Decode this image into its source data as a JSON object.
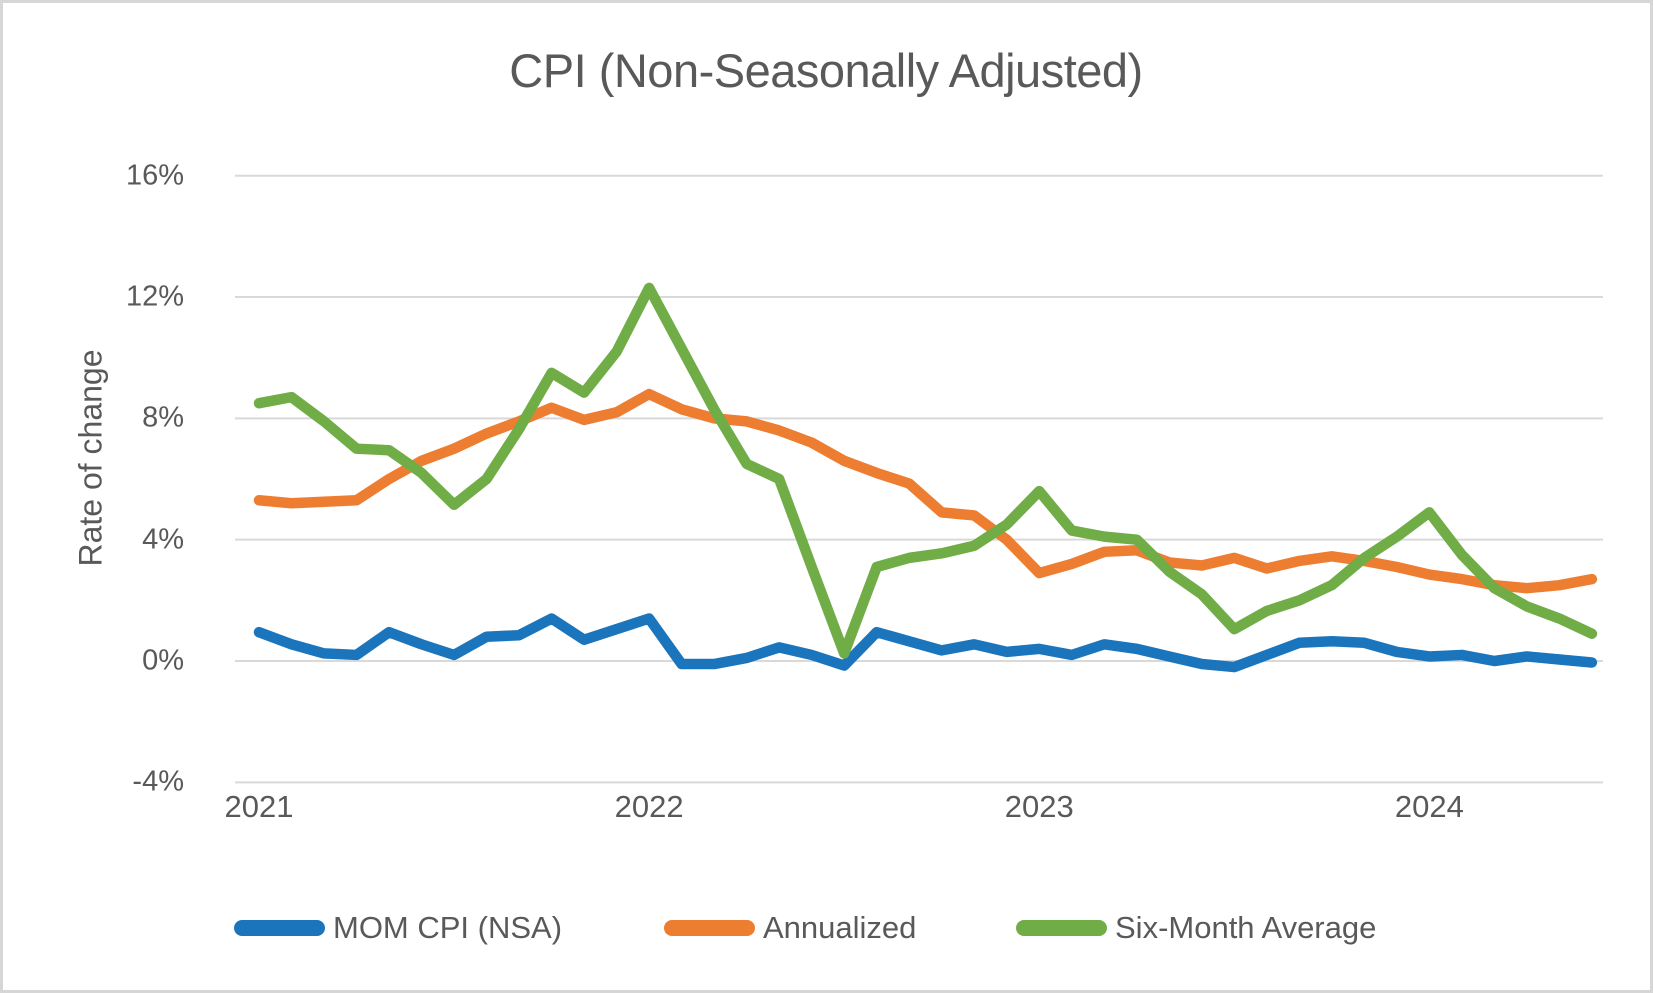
{
  "chart_data": {
    "type": "line",
    "title": "CPI (Non-Seasonally Adjusted)",
    "ylabel": "Rate of change",
    "xlabel": "",
    "grid": "horizontal",
    "legend_position": "bottom",
    "y_unit": "%",
    "ylim": [
      -6.5,
      17.7
    ],
    "y_ticks": [
      {
        "label": "16%",
        "value": 16
      },
      {
        "label": "12%",
        "value": 12
      },
      {
        "label": "8%",
        "value": 8
      },
      {
        "label": "4%",
        "value": 4
      },
      {
        "label": "0%",
        "value": 0
      },
      {
        "label": "-4%",
        "value": -4
      }
    ],
    "x_ticks": [
      {
        "label": "2021",
        "month_index": 0
      },
      {
        "label": "2022",
        "month_index": 12
      },
      {
        "label": "2023",
        "month_index": 24
      },
      {
        "label": "2024",
        "month_index": 36
      }
    ],
    "months": [
      "Jan 2021",
      "Feb 2021",
      "Mar 2021",
      "Apr 2021",
      "May 2021",
      "Jun 2021",
      "Jul 2021",
      "Aug 2021",
      "Sep 2021",
      "Oct 2021",
      "Nov 2021",
      "Dec 2021",
      "Jan 2022",
      "Feb 2022",
      "Mar 2022",
      "Apr 2022",
      "May 2022",
      "Jun 2022",
      "Jul 2022",
      "Aug 2022",
      "Sep 2022",
      "Oct 2022",
      "Nov 2022",
      "Dec 2022",
      "Jan 2023",
      "Feb 2023",
      "Mar 2023",
      "Apr 2023",
      "May 2023",
      "Jun 2023",
      "Jul 2023",
      "Aug 2023",
      "Sep 2023",
      "Oct 2023",
      "Nov 2023",
      "Dec 2023",
      "Jan 2024",
      "Feb 2024",
      "Mar 2024",
      "Apr 2024",
      "May 2024",
      "Jun 2024"
    ],
    "series": [
      {
        "name": "MOM CPI (NSA)",
        "color": "#1B75BC",
        "values": [
          0.95,
          0.55,
          0.25,
          0.2,
          0.95,
          0.55,
          0.2,
          0.8,
          0.85,
          1.4,
          0.7,
          1.05,
          1.4,
          -0.1,
          -0.1,
          0.1,
          0.45,
          0.2,
          -0.15,
          0.95,
          0.65,
          0.35,
          0.55,
          0.3,
          0.4,
          0.2,
          0.55,
          0.4,
          0.15,
          -0.1,
          -0.2,
          0.2,
          0.6,
          0.65,
          0.6,
          0.3,
          0.15,
          0.2,
          0.0,
          0.15,
          0.05,
          -0.05
        ]
      },
      {
        "name": "Annualized",
        "color": "#ED7D31",
        "values": [
          5.3,
          5.2,
          5.25,
          5.3,
          6.0,
          6.6,
          7.0,
          7.5,
          7.9,
          8.35,
          7.95,
          8.2,
          8.8,
          8.3,
          8.0,
          7.9,
          7.6,
          7.2,
          6.6,
          6.2,
          5.85,
          4.9,
          4.8,
          4.0,
          2.9,
          3.2,
          3.6,
          3.65,
          3.25,
          3.15,
          3.4,
          3.05,
          3.3,
          3.45,
          3.3,
          3.1,
          2.85,
          2.7,
          2.5,
          2.4,
          2.5,
          2.7
        ]
      },
      {
        "name": "Six-Month Average",
        "color": "#70AD47",
        "values": [
          8.5,
          8.7,
          7.9,
          7.0,
          6.95,
          6.2,
          5.15,
          6.0,
          7.65,
          9.5,
          8.85,
          10.2,
          12.3,
          10.3,
          8.3,
          6.5,
          6.0,
          3.1,
          0.25,
          3.1,
          3.4,
          3.55,
          3.8,
          4.5,
          5.6,
          4.3,
          4.1,
          4.0,
          2.95,
          2.2,
          1.05,
          1.65,
          2.0,
          2.5,
          3.4,
          4.1,
          4.9,
          3.5,
          2.4,
          1.8,
          1.4,
          0.9
        ]
      }
    ]
  }
}
